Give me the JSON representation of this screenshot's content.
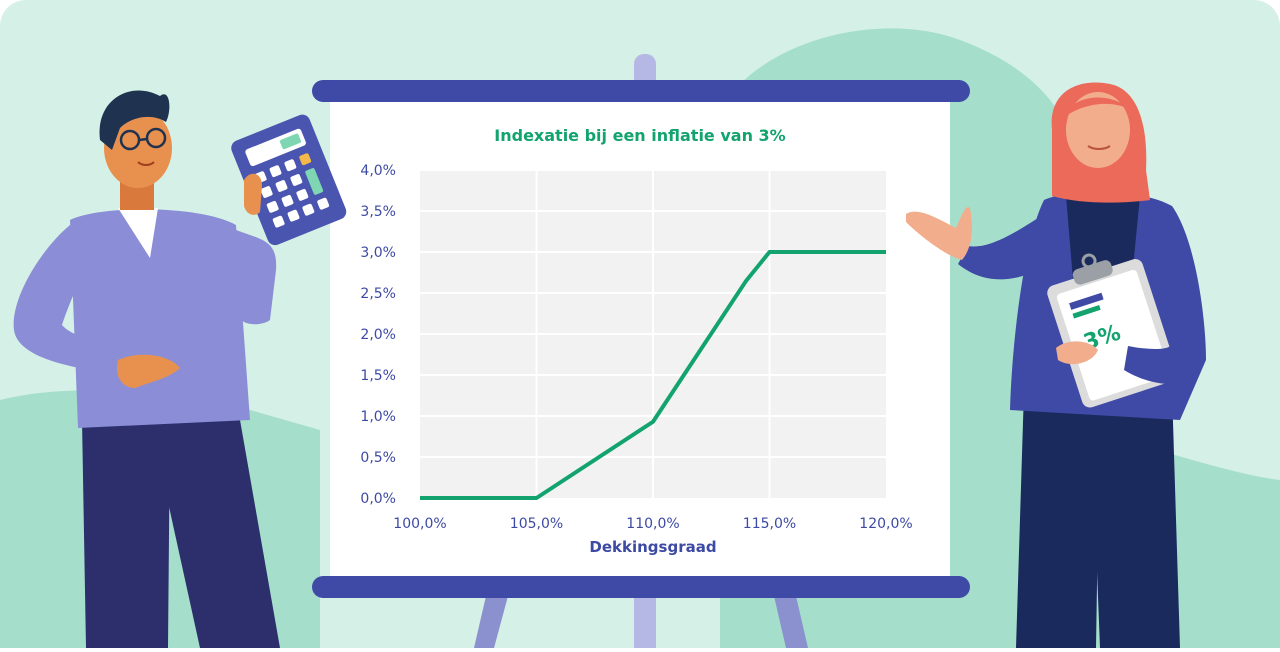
{
  "colors": {
    "background": "#d5f0e7",
    "background_blob": "#a5dfcb",
    "board_bar": "#3f4aa6",
    "easel_leg": "#8b90cf",
    "grid_bg": "#f2f2f2",
    "line": "#12a36f",
    "axis_text": "#3d4aa3"
  },
  "illustration": {
    "clipboard_text": "3%"
  },
  "chart_data": {
    "type": "line",
    "title": "Indexatie bij een inflatie van 3%",
    "xlabel": "Dekkingsgraad",
    "ylabel": "",
    "x_tick_labels": [
      "100,0%",
      "105,0%",
      "110,0%",
      "115,0%",
      "120,0%"
    ],
    "y_tick_labels": [
      "0,0%",
      "0,5%",
      "1,0%",
      "1,5%",
      "2,0%",
      "2,5%",
      "3,0%",
      "3,5%",
      "4,0%"
    ],
    "xlim": [
      100,
      120
    ],
    "ylim": [
      0,
      4
    ],
    "grid": true,
    "legend": "none",
    "series": [
      {
        "x": [
          100,
          105,
          110,
          114,
          115,
          120
        ],
        "y": [
          0.0,
          0.0,
          0.93,
          2.65,
          3.0,
          3.0
        ]
      }
    ]
  }
}
